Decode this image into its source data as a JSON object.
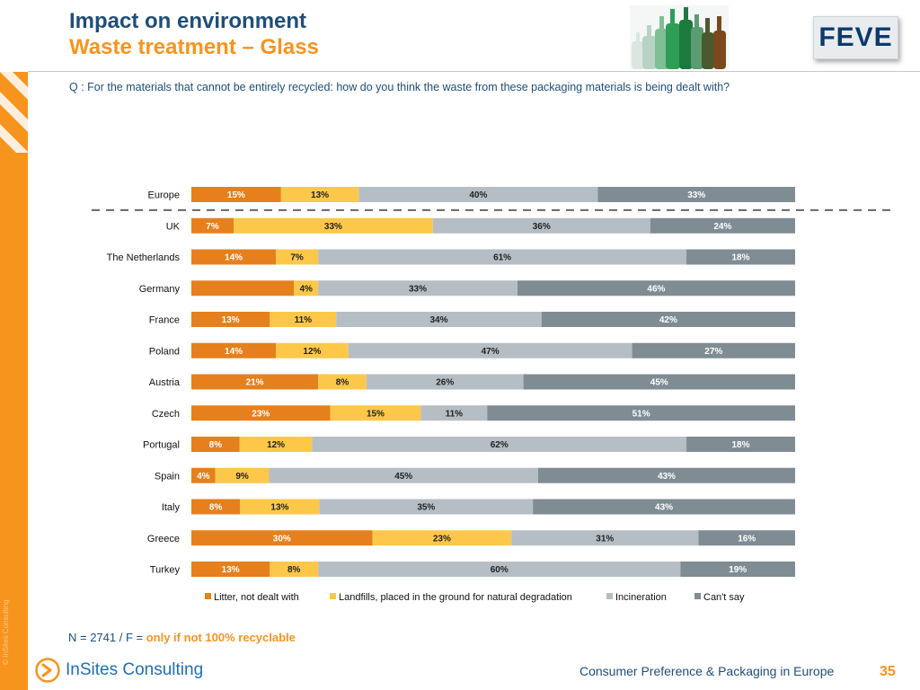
{
  "header": {
    "title": "Impact on environment",
    "subtitle": "Waste treatment – Glass",
    "logo": "FEVE",
    "image": "glass-bottles"
  },
  "question": "Q : For the materials that cannot be entirely recycled: how do you think the waste from these packaging materials is being dealt with?",
  "sidebar": {
    "copyright": "© InSites Consulting"
  },
  "chart_data": {
    "type": "bar",
    "orientation": "horizontal",
    "stacked": true,
    "percent_scale": true,
    "categories": [
      "Europe",
      "UK",
      "The Netherlands",
      "Germany",
      "France",
      "Poland",
      "Austria",
      "Czech",
      "Portugal",
      "Spain",
      "Italy",
      "Greece",
      "Turkey"
    ],
    "series": [
      {
        "name": "Litter, not dealt with",
        "color": "#e5801d",
        "values": [
          15,
          7,
          14,
          17,
          13,
          14,
          21,
          23,
          8,
          4,
          8,
          30,
          13
        ]
      },
      {
        "name": "Landfills, placed in the ground for natural degradation",
        "color": "#fdc849",
        "values": [
          13,
          33,
          7,
          4,
          11,
          12,
          8,
          15,
          12,
          9,
          13,
          23,
          8
        ]
      },
      {
        "name": "Incineration",
        "color": "#b6bec5",
        "values": [
          40,
          36,
          61,
          33,
          34,
          47,
          26,
          11,
          62,
          45,
          35,
          31,
          60
        ]
      },
      {
        "name": "Can't say",
        "color": "#7f8c94",
        "values": [
          33,
          24,
          18,
          46,
          42,
          27,
          45,
          51,
          18,
          43,
          43,
          16,
          19
        ]
      }
    ],
    "data_labels": [
      [
        "15%",
        "7%",
        "14%",
        "",
        "13%",
        "14%",
        "21%",
        "23%",
        "8%",
        "4%",
        "8%",
        "30%",
        "13%"
      ],
      [
        "13%",
        "33%",
        "7%",
        "4%",
        "11%",
        "12%",
        "8%",
        "15%",
        "12%",
        "9%",
        "13%",
        "23%",
        "8%"
      ],
      [
        "40%",
        "36%",
        "61%",
        "33%",
        "34%",
        "47%",
        "26%",
        "11%",
        "62%",
        "45%",
        "35%",
        "31%",
        "60%"
      ],
      [
        "33%",
        "24%",
        "18%",
        "46%",
        "42%",
        "27%",
        "45%",
        "51%",
        "18%",
        "43%",
        "43%",
        "16%",
        "19%"
      ]
    ],
    "label_colors": [
      "#ffffff",
      "#222222",
      "#222222",
      "#ffffff"
    ],
    "separator_after": "Europe",
    "legend_position": "bottom"
  },
  "footnote": {
    "prefix": "N =  2741 / F = ",
    "highlight": "only if not 100% recyclable"
  },
  "footer": {
    "brand": "InSites Consulting",
    "title": "Consumer Preference & Packaging in Europe",
    "page": "35"
  }
}
